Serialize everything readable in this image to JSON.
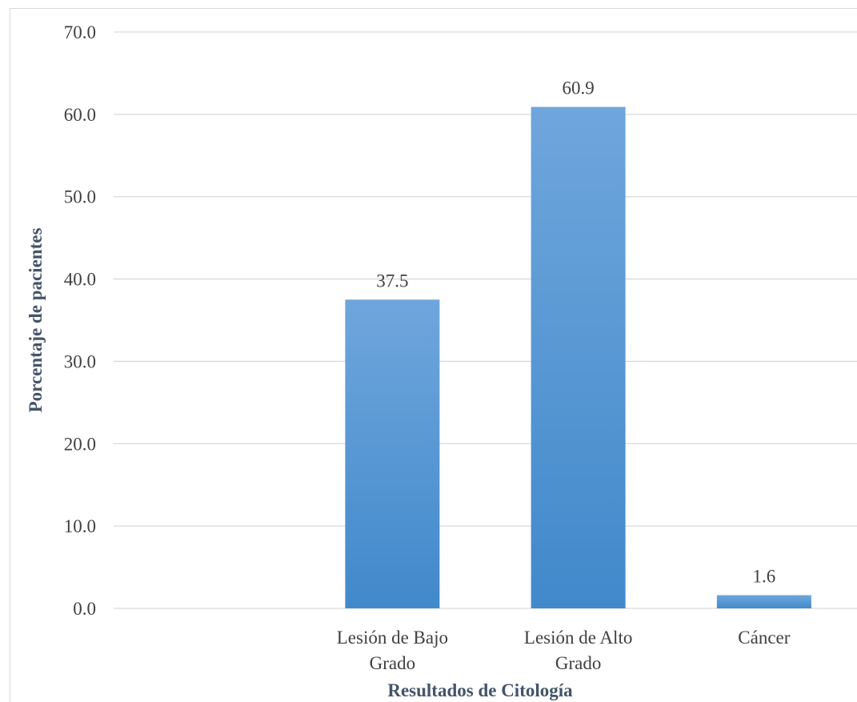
{
  "chart_data": {
    "type": "bar",
    "title": "",
    "xlabel": "Resultados de Citología",
    "ylabel": "Porcentaje de pacientes",
    "categories": [
      [
        "",
        ""
      ],
      [
        "Lesión de Bajo",
        "Grado"
      ],
      [
        "Lesión de Alto",
        "Grado"
      ],
      [
        "Cáncer",
        ""
      ]
    ],
    "values": [
      0,
      37.5,
      60.9,
      1.6
    ],
    "data_labels": [
      "",
      "37.5",
      "60.9",
      "1.6"
    ],
    "ylim": [
      0,
      70
    ],
    "yticks": [
      "0.0",
      "10.0",
      "20.0",
      "30.0",
      "40.0",
      "50.0",
      "60.0",
      "70.0"
    ],
    "grid": true,
    "legend": "none",
    "colors": {
      "bar_top": "#6fa6dc",
      "bar_bottom": "#4189cb",
      "grid": "#d9d9d9",
      "text": "#404040",
      "axis_title": "#44546a"
    }
  }
}
